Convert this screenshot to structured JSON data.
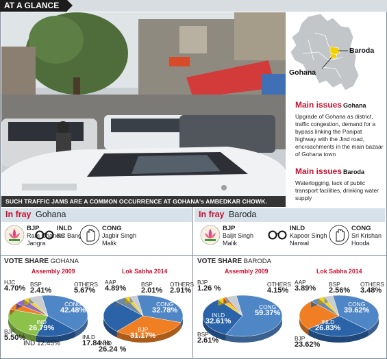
{
  "header": {
    "title": "AT A GLANCE"
  },
  "photo": {
    "caption": "SUCH TRAFFIC JAMS ARE A COMMON OCCURRENCE AT GOHANA's AMBEDKAR CHOWK.",
    "sign_text": "भारत भवन हलवाई"
  },
  "map": {
    "label_baroda": "Baroda",
    "label_gohana": "Gohana",
    "highlight_color": "#f5d000"
  },
  "issues": [
    {
      "heading": "Main issues",
      "place": "Gohana",
      "text": "Upgrade of Gohana as district, traffic congestion, demand for a bypass linking the Panipat highway with the Jind road, encroachments in the main bazaar of Gohana town"
    },
    {
      "heading": "Main issues",
      "place": "Baroda",
      "text": "Waterlogging, lack of public transport facilities, drinking water supply"
    }
  ],
  "fray": [
    {
      "label": "In fray",
      "place": "Gohana",
      "candidates": [
        {
          "party": "BJP",
          "name": "Ram Chander Jangra",
          "icon": "lotus-icon"
        },
        {
          "party": "INLD",
          "name": "KC Bangar",
          "icon": "spectacles-icon"
        },
        {
          "party": "CONG",
          "name": "Jagbir Singh Malik",
          "icon": "hand-icon"
        }
      ]
    },
    {
      "label": "In fray",
      "place": "Baroda",
      "candidates": [
        {
          "party": "BJP",
          "name": "Baljit Singh Malik",
          "icon": "lotus-icon"
        },
        {
          "party": "INLD",
          "name": "Kapoor Singh Narwal",
          "icon": "spectacles-icon"
        },
        {
          "party": "CONG",
          "name": "Sri Krishan Hooda",
          "icon": "hand-icon"
        }
      ]
    }
  ],
  "vote_share": [
    {
      "title": "VOTE SHARE",
      "place": "GOHANA"
    },
    {
      "title": "VOTE SHARE",
      "place": "BARODA"
    }
  ],
  "party_colors": {
    "CONG": "#4f86c6",
    "IND": "#8cc24a",
    "INLD": "#2b63a8",
    "BJP": "#ef7f22",
    "HJC": "#8e6bbf",
    "BSP": "#f2d21a",
    "OTHERS": "#c8cdd2",
    "AAP": "#6e89a8"
  },
  "chart_data": [
    {
      "type": "pie",
      "title": "Assembly 2009",
      "labels": [
        "CONG",
        "INLD",
        "IND",
        "BJP",
        "HJC",
        "BSP",
        "OTHERS"
      ],
      "values": [
        42.48,
        17.84,
        26.79,
        5.5,
        4.7,
        2.41,
        5.67
      ],
      "ind_extra_label": "IND 12.45%",
      "display": {
        "CONG": "42.48%",
        "INLD": "17.84 %",
        "IND": "26.79%",
        "BJP": "5.50%",
        "HJC": "4.70%",
        "BSP": "2.41%",
        "OTHERS": "5.67%"
      }
    },
    {
      "type": "pie",
      "title": "Lok Sabha 2014",
      "labels": [
        "CONG",
        "BJP",
        "INLD",
        "AAP",
        "BSP",
        "OTHERS"
      ],
      "values": [
        32.78,
        31.17,
        26.24,
        4.89,
        2.01,
        2.91
      ],
      "display": {
        "CONG": "32.78%",
        "BJP": "31.17%",
        "INLD": "26.24 %",
        "AAP": "4.89%",
        "BSP": "2.01%",
        "OTHERS": "2.91%"
      }
    },
    {
      "type": "pie",
      "title": "Assembly 2009",
      "labels": [
        "CONG",
        "INLD",
        "BSP",
        "BJP",
        "OTHERS"
      ],
      "values": [
        59.37,
        32.61,
        2.61,
        1.26,
        4.15
      ],
      "display": {
        "CONG": "59.37%",
        "INLD": "32.61%",
        "BSP": "2.61%",
        "BJP": "1.26 %",
        "OTHERS": "4.15%"
      }
    },
    {
      "type": "pie",
      "title": "Lok Sabha 2014",
      "labels": [
        "CONG",
        "INLD",
        "BJP",
        "AAP",
        "BSP",
        "OTHERS"
      ],
      "values": [
        39.62,
        26.83,
        23.62,
        3.89,
        2.56,
        3.48
      ],
      "display": {
        "CONG": "39.62%",
        "INLD": "26.83%",
        "BJP": "23.62%",
        "AAP": "3.89%",
        "BSP": "2.56%",
        "OTHERS": "3.48%"
      }
    }
  ]
}
